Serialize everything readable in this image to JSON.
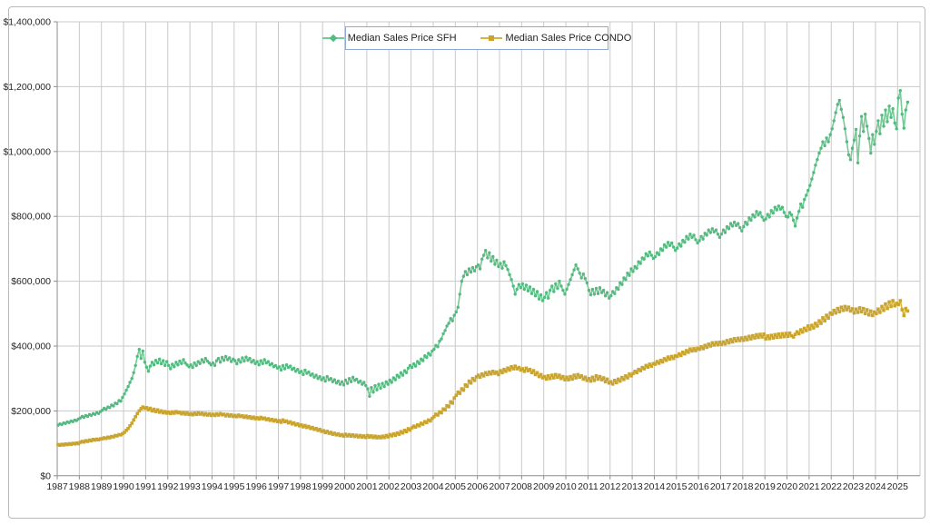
{
  "chart_data": {
    "type": "line",
    "title": "",
    "frequency": "monthly",
    "start_year": 1987,
    "start_month": 1,
    "value_unit": "USD thousands",
    "grid": true,
    "legend_position": "top-center",
    "colors": {
      "grid": "#c9c9c9",
      "axis": "#8c8c8c",
      "text": "#262626",
      "legend_border": "#8fa9d6"
    },
    "y_axis": {
      "min": 0,
      "max": 1400000,
      "step": 200000,
      "tick_labels": [
        "$0",
        "$200,000",
        "$400,000",
        "$600,000",
        "$800,000",
        "$1,000,000",
        "$1,200,000",
        "$1,400,000"
      ]
    },
    "x_axis": {
      "tick_labels": [
        "1987",
        "1988",
        "1989",
        "1990",
        "1991",
        "1992",
        "1993",
        "1994",
        "1995",
        "1996",
        "1997",
        "1998",
        "1999",
        "2000",
        "2001",
        "2002",
        "2003",
        "2004",
        "2005",
        "2006",
        "2007",
        "2008",
        "2009",
        "2010",
        "2011",
        "2012",
        "2013",
        "2014",
        "2015",
        "2016",
        "2017",
        "2018",
        "2019",
        "2020",
        "2021",
        "2022",
        "2023",
        "2024",
        "2025"
      ]
    },
    "series": [
      {
        "name": "Median Sales Price SFH",
        "color": "#74cb95",
        "marker_color": "#53ba80",
        "marker": "diamond",
        "values_k": [
          156,
          160,
          158,
          163,
          161,
          166,
          164,
          169,
          167,
          172,
          170,
          175,
          178,
          183,
          180,
          186,
          183,
          189,
          186,
          192,
          189,
          195,
          192,
          198,
          202,
          208,
          205,
          212,
          210,
          218,
          215,
          224,
          222,
          232,
          230,
          242,
          252,
          264,
          275,
          288,
          300,
          318,
          340,
          368,
          390,
          362,
          385,
          350,
          335,
          322,
          338,
          350,
          342,
          356,
          348,
          360,
          345,
          355,
          340,
          352,
          340,
          330,
          344,
          336,
          350,
          342,
          354,
          346,
          358,
          348,
          342,
          336,
          342,
          334,
          348,
          340,
          352,
          346,
          358,
          350,
          362,
          354,
          348,
          342,
          348,
          340,
          355,
          362,
          350,
          365,
          356,
          368,
          358,
          364,
          352,
          360,
          355,
          345,
          358,
          350,
          364,
          354,
          366,
          356,
          362,
          350,
          356,
          346,
          352,
          342,
          355,
          346,
          358,
          348,
          352,
          342,
          346,
          336,
          340,
          332,
          336,
          326,
          340,
          330,
          342,
          334,
          338,
          328,
          332,
          322,
          328,
          318,
          322,
          312,
          326,
          316,
          320,
          310,
          314,
          304,
          310,
          300,
          306,
          296,
          302,
          292,
          306,
          296,
          300,
          290,
          296,
          286,
          292,
          282,
          290,
          280,
          295,
          285,
          300,
          290,
          304,
          294,
          298,
          288,
          292,
          282,
          288,
          278,
          268,
          245,
          272,
          258,
          278,
          265,
          282,
          270,
          285,
          275,
          290,
          282,
          295,
          288,
          302,
          296,
          310,
          304,
          318,
          310,
          324,
          318,
          332,
          340,
          334,
          345,
          338,
          352,
          346,
          360,
          355,
          370,
          365,
          378,
          372,
          385,
          390,
          402,
          398,
          415,
          422,
          438,
          448,
          462,
          470,
          485,
          478,
          495,
          505,
          520,
          560,
          600,
          615,
          630,
          620,
          638,
          628,
          642,
          632,
          645,
          650,
          638,
          668,
          680,
          695,
          672,
          688,
          662,
          676,
          652,
          665,
          645,
          655,
          640,
          660,
          648,
          636,
          620,
          605,
          585,
          560,
          575,
          590,
          580,
          592,
          575,
          588,
          570,
          582,
          562,
          575,
          555,
          568,
          545,
          558,
          540,
          550,
          565,
          548,
          572,
          585,
          568,
          592,
          578,
          600,
          585,
          572,
          560,
          575,
          590,
          605,
          620,
          635,
          650,
          638,
          625,
          610,
          622,
          608,
          595,
          572,
          558,
          575,
          560,
          578,
          562,
          580,
          565,
          572,
          555,
          565,
          548,
          555,
          568,
          562,
          580,
          575,
          595,
          590,
          610,
          605,
          625,
          618,
          638,
          630,
          645,
          640,
          660,
          655,
          672,
          668,
          685,
          678,
          690,
          680,
          670,
          675,
          688,
          682,
          700,
          695,
          712,
          705,
          720,
          710,
          718,
          705,
          695,
          702,
          715,
          708,
          726,
          720,
          738,
          730,
          745,
          735,
          742,
          728,
          718,
          725,
          738,
          730,
          748,
          742,
          758,
          750,
          762,
          752,
          758,
          745,
          735,
          745,
          758,
          750,
          768,
          762,
          778,
          770,
          782,
          772,
          778,
          765,
          755,
          768,
          782,
          775,
          795,
          788,
          805,
          798,
          815,
          805,
          812,
          798,
          788,
          792,
          806,
          798,
          818,
          810,
          828,
          820,
          832,
          822,
          828,
          812,
          800,
          798,
          812,
          805,
          788,
          770,
          795,
          815,
          838,
          828,
          852,
          865,
          880,
          895,
          915,
          935,
          958,
          975,
          995,
          1010,
          1030,
          1018,
          1042,
          1030,
          1052,
          1070,
          1095,
          1120,
          1145,
          1158,
          1130,
          1105,
          1070,
          1030,
          990,
          975,
          1010,
          1035,
          1068,
          965,
          1048,
          1108,
          1062,
          1115,
          1078,
          1040,
          995,
          1052,
          1022,
          1062,
          1095,
          1055,
          1112,
          1078,
          1128,
          1092,
          1140,
          1105,
          1132,
          1088,
          1070,
          1165,
          1188,
          1115,
          1072,
          1128,
          1152
        ]
      },
      {
        "name": "Median Sales Price CONDO",
        "color": "#d7b440",
        "marker_color": "#c9a42e",
        "marker": "square",
        "values_k": [
          96,
          94,
          97,
          95,
          98,
          96,
          99,
          97,
          100,
          98,
          101,
          99,
          103,
          106,
          104,
          108,
          106,
          110,
          108,
          112,
          110,
          113,
          111,
          114,
          114,
          117,
          115,
          119,
          117,
          121,
          120,
          124,
          123,
          127,
          126,
          130,
          134,
          140,
          146,
          154,
          162,
          172,
          182,
          192,
          200,
          207,
          212,
          208,
          210,
          204,
          208,
          200,
          205,
          198,
          203,
          196,
          200,
          194,
          198,
          193,
          196,
          192,
          197,
          193,
          198,
          194,
          196,
          191,
          195,
          190,
          194,
          189,
          192,
          188,
          193,
          189,
          194,
          190,
          193,
          188,
          192,
          187,
          191,
          186,
          190,
          186,
          191,
          187,
          192,
          188,
          190,
          185,
          189,
          184,
          188,
          183,
          186,
          182,
          187,
          183,
          185,
          180,
          184,
          179,
          182,
          177,
          181,
          176,
          179,
          175,
          180,
          176,
          178,
          173,
          176,
          171,
          174,
          169,
          172,
          167,
          170,
          165,
          172,
          167,
          169,
          163,
          166,
          160,
          163,
          157,
          160,
          154,
          157,
          151,
          155,
          149,
          152,
          146,
          149,
          143,
          146,
          140,
          143,
          137,
          139,
          133,
          137,
          131,
          134,
          128,
          131,
          126,
          129,
          124,
          127,
          122,
          128,
          123,
          127,
          122,
          126,
          121,
          125,
          120,
          124,
          119,
          123,
          118,
          124,
          119,
          123,
          118,
          122,
          117,
          121,
          117,
          122,
          118,
          124,
          120,
          127,
          123,
          129,
          125,
          132,
          128,
          136,
          132,
          140,
          136,
          145,
          141,
          148,
          153,
          150,
          157,
          154,
          162,
          159,
          167,
          164,
          172,
          169,
          177,
          182,
          190,
          187,
          197,
          194,
          206,
          203,
          216,
          213,
          228,
          224,
          240,
          248,
          258,
          254,
          268,
          264,
          280,
          276,
          292,
          286,
          300,
          294,
          305,
          310,
          304,
          314,
          308,
          318,
          312,
          320,
          314,
          322,
          316,
          320,
          312,
          324,
          318,
          328,
          322,
          332,
          326,
          336,
          330,
          338,
          330,
          334,
          326,
          330,
          322,
          332,
          324,
          328,
          318,
          324,
          312,
          318,
          306,
          312,
          302,
          306,
          298,
          308,
          300,
          310,
          302,
          312,
          304,
          310,
          300,
          306,
          296,
          304,
          296,
          306,
          298,
          310,
          302,
          312,
          304,
          308,
          298,
          304,
          294,
          300,
          292,
          304,
          294,
          308,
          298,
          306,
          296,
          302,
          290,
          298,
          286,
          290,
          283,
          294,
          287,
          298,
          292,
          303,
          297,
          308,
          302,
          314,
          308,
          315,
          322,
          318,
          328,
          324,
          334,
          330,
          340,
          335,
          344,
          338,
          346,
          344,
          352,
          347,
          356,
          351,
          361,
          356,
          366,
          360,
          368,
          362,
          370,
          368,
          376,
          371,
          381,
          376,
          386,
          381,
          391,
          385,
          392,
          386,
          393,
          390,
          398,
          392,
          402,
          396,
          406,
          400,
          410,
          403,
          411,
          404,
          412,
          405,
          413,
          407,
          417,
          410,
          420,
          413,
          423,
          416,
          424,
          417,
          425,
          418,
          427,
          420,
          430,
          422,
          432,
          425,
          435,
          427,
          436,
          428,
          437,
          422,
          431,
          423,
          433,
          425,
          435,
          427,
          437,
          428,
          438,
          429,
          439,
          430,
          440,
          432,
          428,
          436,
          444,
          438,
          450,
          443,
          455,
          448,
          462,
          452,
          464,
          456,
          470,
          462,
          478,
          470,
          487,
          478,
          495,
          486,
          502,
          498,
          510,
          502,
          516,
          506,
          520,
          510,
          522,
          512,
          520,
          508,
          515,
          502,
          514,
          504,
          518,
          506,
          516,
          500,
          512,
          496,
          508,
          494,
          505,
          500,
          514,
          504,
          522,
          510,
          530,
          516,
          536,
          522,
          540,
          524,
          532,
          528,
          540,
          512,
          494,
          516,
          508
        ]
      }
    ]
  }
}
